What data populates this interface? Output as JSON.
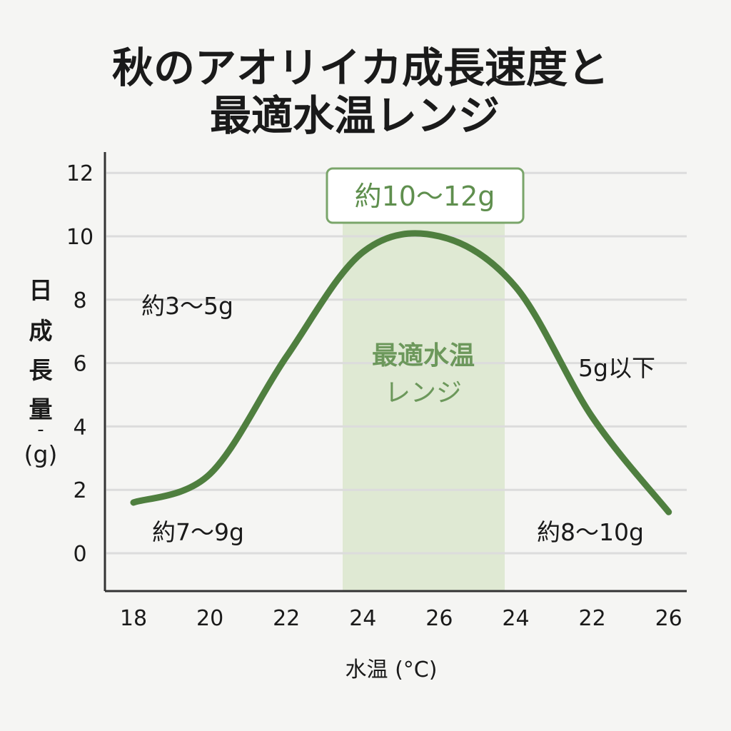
{
  "chart_data": {
    "type": "line",
    "title_lines": [
      "秋のアオリイカ成長速度と",
      "最適水温レンジ"
    ],
    "xlabel": "水温 (°C)",
    "ylabel_chars": [
      "日",
      "成",
      "長",
      "量",
      "-",
      "(g)"
    ],
    "categories": [
      "18",
      "20",
      "22",
      "24",
      "26",
      "24",
      "22",
      "26"
    ],
    "series": [
      {
        "values": [
          1.6,
          2.5,
          6.2,
          9.5,
          10.0,
          8.4,
          4.3,
          1.3
        ]
      }
    ],
    "y_ticks": [
      "0",
      "2",
      "4",
      "6",
      "8",
      "10",
      "12"
    ],
    "ylim": [
      -1.2,
      12.6
    ],
    "grid": true,
    "highlight_band": {
      "label_lines": [
        "最適水温",
        "レンジ"
      ]
    },
    "annotations": {
      "peak_box": "約10〜12g",
      "upper_left": "約3〜5g",
      "lower_left": "約7〜9g",
      "right_middle": "5g以下",
      "lower_right": "約8〜10g"
    },
    "colors": {
      "curve": "#4f7f3f",
      "band": "#dfe9d3",
      "accent_text": "#5f8f4e",
      "background": "#f5f5f3",
      "grid": "#dcdcdc"
    }
  }
}
